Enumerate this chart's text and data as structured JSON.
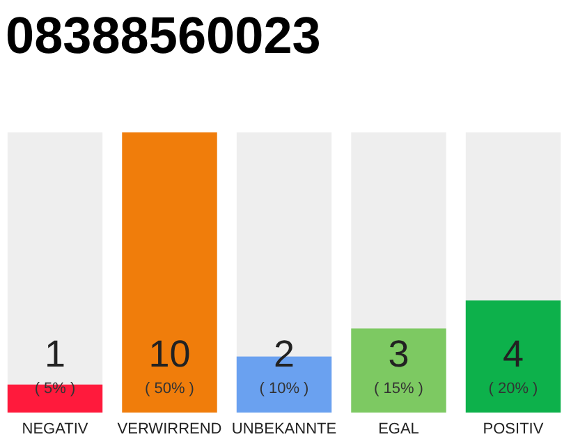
{
  "chart_data": {
    "type": "bar",
    "title": "08388560023",
    "categories": [
      "NEGATIV",
      "VERWIRREND",
      "UNBEKANNTE",
      "EGAL",
      "POSITIV"
    ],
    "values": [
      1,
      10,
      2,
      3,
      4
    ],
    "colors": [
      "#ff1a3c",
      "#f07d0b",
      "#6aa1f0",
      "#7dc962",
      "#0db14b"
    ],
    "data_labels": true,
    "annotations": [
      "( 5% )",
      "( 50% )",
      "( 10% )",
      "( 15% )",
      "( 20% )"
    ]
  }
}
